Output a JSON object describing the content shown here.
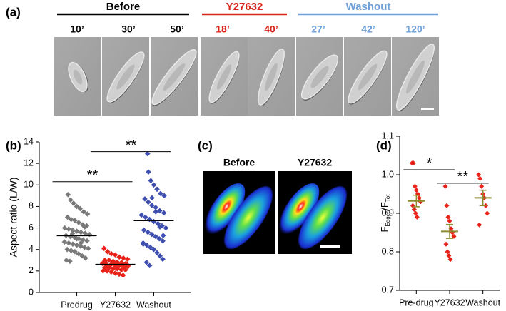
{
  "panel_a": {
    "label": "(a)",
    "groups": [
      {
        "name": "Before",
        "color": "#000000",
        "times": [
          "10’",
          "30’",
          "50’"
        ]
      },
      {
        "name": "Y27632",
        "color": "#d9261c",
        "times": [
          "18’",
          "40’"
        ]
      },
      {
        "name": "Washout",
        "color": "#6fa0d8",
        "times": [
          "27’",
          "42’",
          "120’"
        ]
      }
    ]
  },
  "panel_c": {
    "label": "(c)",
    "titles": [
      "Before",
      "Y27632"
    ]
  },
  "chart_data": [
    {
      "type": "dotplot",
      "label": "(b)",
      "y_label": "Aspect ratio (L/W)",
      "categories": [
        "Predrug",
        "Y27632",
        "Washout"
      ],
      "ylim": [
        0,
        14
      ],
      "yticks": [
        0,
        2,
        4,
        6,
        8,
        10,
        12,
        14
      ],
      "groups": [
        {
          "color": "#7a7a7a",
          "mean": 5.3,
          "values": [
            9.1,
            8.6,
            8.3,
            8.0,
            7.8,
            7.5,
            7.3,
            7.0,
            6.8,
            6.7,
            6.5,
            6.3,
            6.2,
            6.0,
            5.9,
            5.8,
            5.7,
            5.6,
            5.5,
            5.4,
            5.3,
            5.2,
            5.1,
            5.0,
            4.9,
            4.8,
            4.7,
            4.6,
            4.5,
            4.4,
            4.3,
            4.2,
            4.1,
            4.0,
            3.9,
            3.8,
            3.6,
            3.4,
            3.2,
            3.0,
            2.9,
            5.5,
            5.0,
            4.6,
            6.1
          ]
        },
        {
          "color": "#e8231a",
          "mean": 2.6,
          "values": [
            4.1,
            3.8,
            3.6,
            3.5,
            3.3,
            3.2,
            3.1,
            3.0,
            3.0,
            2.9,
            2.8,
            2.8,
            2.7,
            2.7,
            2.6,
            2.6,
            2.5,
            2.5,
            2.4,
            2.4,
            2.3,
            2.3,
            2.2,
            2.2,
            2.1,
            2.1,
            2.0,
            2.0,
            1.9,
            1.8,
            1.7,
            1.6,
            2.5,
            2.9,
            2.3,
            2.7
          ]
        },
        {
          "color": "#3f4fb0",
          "mean": 6.7,
          "values": [
            12.9,
            11.2,
            10.4,
            10.0,
            9.6,
            9.2,
            9.0,
            8.7,
            8.4,
            8.1,
            7.9,
            7.6,
            7.4,
            7.2,
            7.0,
            6.8,
            6.6,
            6.4,
            6.2,
            6.0,
            5.8,
            5.6,
            5.4,
            5.2,
            5.0,
            4.8,
            4.6,
            4.4,
            4.2,
            4.0,
            3.7,
            3.4,
            3.1,
            2.8,
            2.5,
            8.8,
            7.5,
            6.1,
            5.3,
            4.5
          ]
        }
      ],
      "annotations": [
        {
          "text": "**",
          "from": 0,
          "to": 1,
          "y": 10.3
        },
        {
          "text": "**",
          "from": 1,
          "to": 2,
          "y": 13.1
        }
      ]
    },
    {
      "type": "dotplot",
      "label": "(d)",
      "y_label": [
        "F",
        "Edges",
        "/F",
        "Tot"
      ],
      "categories": [
        "Pre-drug",
        "Y27632",
        "Washout"
      ],
      "ylim": [
        0.7,
        1.1
      ],
      "yticks": [
        0.7,
        0.8,
        0.9,
        {
          "value": 1,
          "label": "1.0"
        },
        1.1
      ],
      "groups": [
        {
          "color": "#e8231a",
          "mean": 0.932,
          "error": 0.015,
          "values": [
            1.03,
            1.03,
            0.97,
            0.96,
            0.95,
            0.94,
            0.93,
            0.92,
            0.91,
            0.9,
            0.89
          ]
        },
        {
          "color": "#e8231a",
          "mean": 0.853,
          "error": 0.018,
          "values": [
            0.97,
            0.92,
            0.89,
            0.88,
            0.86,
            0.85,
            0.84,
            0.82,
            0.8,
            0.79,
            0.78
          ]
        },
        {
          "color": "#e8231a",
          "mean": 0.94,
          "error": 0.02,
          "values": [
            1.0,
            0.99,
            0.97,
            0.95,
            0.94,
            0.92,
            0.9,
            0.87
          ]
        }
      ],
      "mean_color": "#8c8c2c",
      "annotations": [
        {
          "text": "*",
          "from": 0,
          "to": 1,
          "y": 1.013
        },
        {
          "text": "**",
          "from": 1,
          "to": 2,
          "y": 0.978
        }
      ]
    }
  ]
}
